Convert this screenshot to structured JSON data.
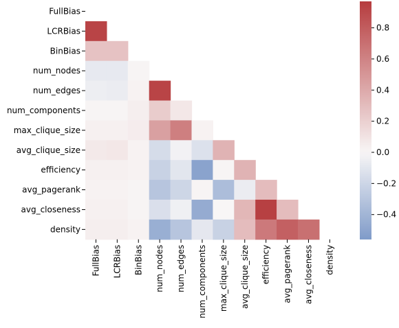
{
  "chart_data": {
    "type": "heatmap",
    "title": "",
    "xlabel": "",
    "ylabel": "",
    "mask": "upper-triangle-including-diagonal",
    "labels": [
      "FullBias",
      "LCRBias",
      "BinBias",
      "num_nodes",
      "num_edges",
      "num_components",
      "max_clique_size",
      "avg_clique_size",
      "efficiency",
      "avg_pagerank",
      "avg_closeness",
      "density"
    ],
    "x_tick_labels": [
      "FullBias",
      "LCRBias",
      "BinBias",
      "num_nodes",
      "num_edges",
      "num_components",
      "max_clique_size",
      "avg_clique_size",
      "efficiency",
      "avg_pagerank",
      "avg_closeness",
      "density"
    ],
    "y_tick_labels": [
      "FullBias",
      "LCRBias",
      "BinBias",
      "num_nodes",
      "num_edges",
      "num_components",
      "max_clique_size",
      "avg_clique_size",
      "efficiency",
      "avg_pagerank",
      "avg_closeness",
      "density"
    ],
    "rows": [
      [],
      [
        0.93
      ],
      [
        0.27,
        0.27
      ],
      [
        -0.08,
        -0.08,
        0.01
      ],
      [
        -0.05,
        -0.06,
        0.02,
        0.93
      ],
      [
        0.01,
        0.01,
        0.04,
        0.22,
        0.08
      ],
      [
        0.03,
        0.03,
        0.05,
        0.45,
        0.62,
        0.02
      ],
      [
        0.07,
        0.08,
        0.02,
        -0.16,
        -0.03,
        -0.13,
        0.35
      ],
      [
        0.03,
        0.03,
        0.02,
        -0.22,
        -0.1,
        -0.51,
        0.01,
        0.35
      ],
      [
        0.02,
        0.02,
        0.01,
        -0.3,
        -0.2,
        0.01,
        -0.35,
        -0.06,
        0.3
      ],
      [
        0.03,
        0.03,
        0.01,
        -0.14,
        -0.04,
        -0.46,
        0.0,
        0.33,
        0.95,
        0.3
      ],
      [
        0.04,
        0.04,
        0.02,
        -0.44,
        -0.3,
        -0.09,
        -0.22,
        0.3,
        0.65,
        0.78,
        0.7
      ]
    ],
    "colorbar": {
      "vmin": -0.56,
      "vmax": 0.97,
      "ticks": [
        -0.4,
        -0.2,
        0.0,
        0.2,
        0.4,
        0.6,
        0.8
      ],
      "tick_labels": [
        "−0.4",
        "−0.2",
        "0.0",
        "0.2",
        "0.4",
        "0.6",
        "0.8"
      ],
      "colormap": "vlag",
      "color_low": "#7f9bc9",
      "color_mid": "#f8f6f6",
      "color_high": "#b63c3e"
    },
    "grid": false,
    "legend": "colorbar-right"
  }
}
